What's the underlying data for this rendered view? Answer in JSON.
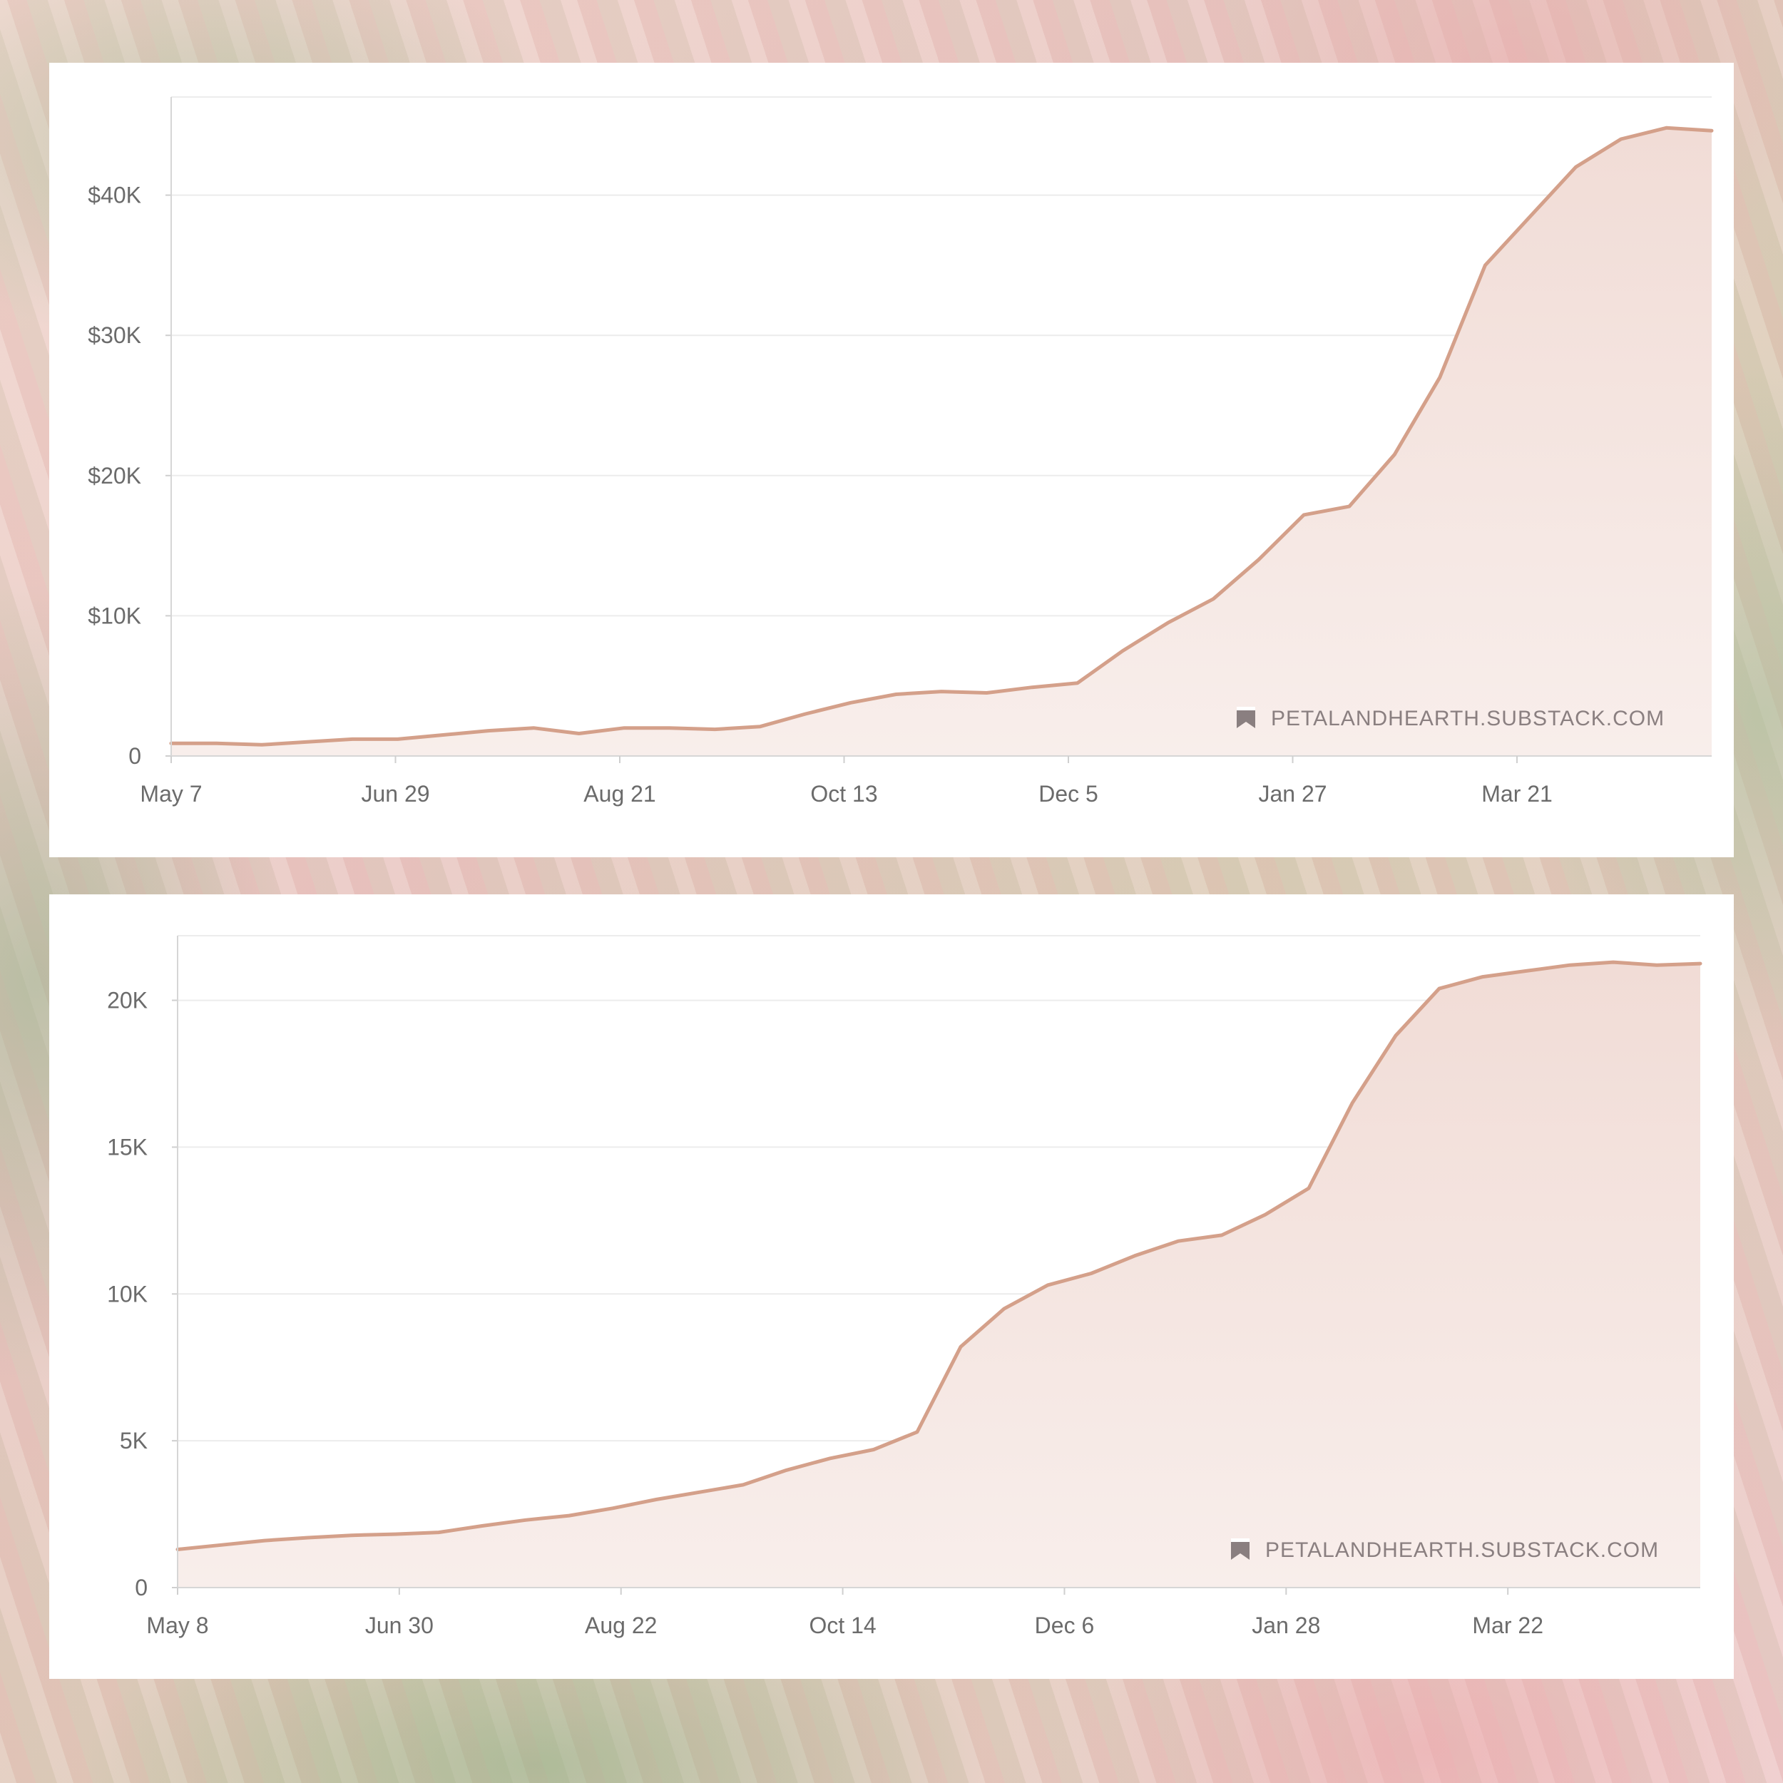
{
  "colors": {
    "line": "#d4a08a",
    "fill_top": "#f1dcd6",
    "fill_bottom": "#f8eeeb",
    "watermark": "#8a7f80"
  },
  "chart_data": [
    {
      "type": "area",
      "watermark": "PETALANDHEARTH.SUBSTACK.COM",
      "watermark_icon": "bookmark-icon",
      "x_tick_labels": [
        "May 7",
        "Jun 29",
        "Aug 21",
        "Oct 13",
        "Dec 5",
        "Jan 27",
        "Mar 21"
      ],
      "y_tick_labels": [
        "0",
        "$10K",
        "$20K",
        "$30K",
        "$40K"
      ],
      "ylim": [
        0,
        47000
      ],
      "grid": true,
      "x": [
        "May 7",
        "May 21",
        "Jun 4",
        "Jun 18",
        "Jul 2",
        "Jul 16",
        "Jul 30",
        "Aug 13",
        "Aug 27",
        "Sep 10",
        "Sep 24",
        "Oct 8",
        "Oct 22",
        "Nov 5",
        "Nov 19",
        "Dec 3",
        "Dec 17",
        "Dec 31",
        "Jan 7",
        "Jan 14",
        "Jan 21",
        "Jan 28",
        "Feb 4",
        "Feb 11",
        "Feb 18",
        "Feb 25",
        "Mar 4",
        "Mar 11",
        "Mar 18",
        "Mar 25",
        "Apr 1",
        "Apr 8",
        "Apr 15",
        "Apr 22",
        "Apr 29"
      ],
      "values": [
        900,
        900,
        800,
        1000,
        1200,
        1200,
        1500,
        1800,
        2000,
        1600,
        2000,
        2000,
        1900,
        2100,
        3000,
        3800,
        4400,
        4600,
        4500,
        4900,
        5200,
        7500,
        9500,
        11200,
        14000,
        17200,
        17800,
        21500,
        27000,
        35000,
        38500,
        42000,
        44000,
        44800,
        44600
      ]
    },
    {
      "type": "area",
      "watermark": "PETALANDHEARTH.SUBSTACK.COM",
      "watermark_icon": "bookmark-icon",
      "x_tick_labels": [
        "May 8",
        "Jun 30",
        "Aug 22",
        "Oct 14",
        "Dec 6",
        "Jan 28",
        "Mar 22"
      ],
      "y_tick_labels": [
        "0",
        "5K",
        "10K",
        "15K",
        "20K"
      ],
      "ylim": [
        0,
        22200
      ],
      "grid": true,
      "x": [
        "May 8",
        "May 22",
        "Jun 5",
        "Jun 19",
        "Jul 3",
        "Jul 17",
        "Jul 31",
        "Aug 14",
        "Aug 28",
        "Sep 11",
        "Sep 25",
        "Oct 9",
        "Oct 23",
        "Nov 6",
        "Nov 20",
        "Dec 4",
        "Dec 18",
        "Dec 25",
        "Jan 1",
        "Jan 8",
        "Jan 15",
        "Jan 22",
        "Jan 29",
        "Feb 5",
        "Feb 12",
        "Feb 19",
        "Feb 26",
        "Mar 5",
        "Mar 12",
        "Mar 19",
        "Mar 26",
        "Apr 2",
        "Apr 9",
        "Apr 16",
        "Apr 23",
        "Apr 30"
      ],
      "values": [
        1300,
        1450,
        1600,
        1700,
        1780,
        1820,
        1880,
        2100,
        2300,
        2450,
        2700,
        3000,
        3250,
        3500,
        4000,
        4400,
        4700,
        5300,
        8200,
        9500,
        10300,
        10700,
        11300,
        11800,
        12000,
        12700,
        13600,
        16500,
        18800,
        20400,
        20800,
        21000,
        21200,
        21300,
        21200,
        21250
      ]
    }
  ]
}
